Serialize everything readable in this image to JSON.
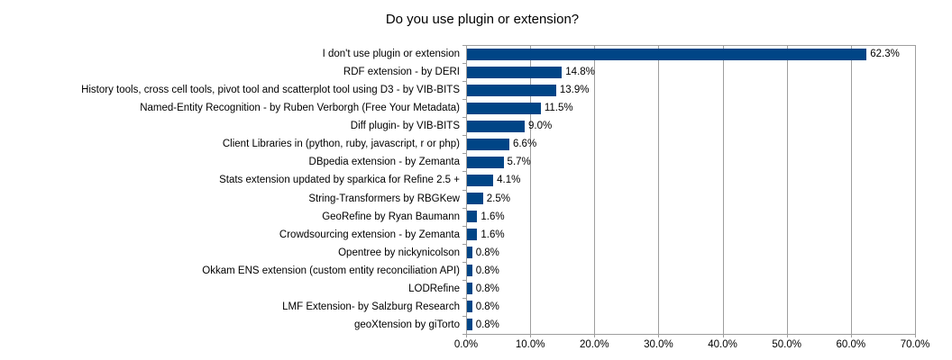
{
  "chart_data": {
    "type": "bar",
    "orientation": "horizontal",
    "title": "Do you use plugin or extension?",
    "xlabel": "",
    "ylabel": "",
    "xlim": [
      0,
      70
    ],
    "grid": true,
    "legend": false,
    "bar_color": "#004586",
    "grid_color": "#9e9e9e",
    "categories": [
      "I don't use plugin or extension",
      "RDF extension - by DERI",
      "History tools, cross cell tools, pivot tool and scatterplot tool using D3 - by VIB-BITS",
      "Named-Entity Recognition - by Ruben Verborgh (Free Your Metadata)",
      "Diff plugin- by VIB-BITS",
      "Client Libraries in (python, ruby, javascript, r or php)",
      "DBpedia extension - by Zemanta",
      "Stats extension updated by sparkica for Refine 2.5 +",
      "String-Transformers by RBGKew",
      "GeoRefine by Ryan Baumann",
      "Crowdsourcing extension - by Zemanta",
      "Opentree by nickynicolson",
      "Okkam ENS extension (custom entity reconciliation API)",
      "LODRefine",
      "LMF Extension- by Salzburg Research",
      "geoXtension by giTorto"
    ],
    "values": [
      62.3,
      14.8,
      13.9,
      11.5,
      9.0,
      6.6,
      5.7,
      4.1,
      2.5,
      1.6,
      1.6,
      0.8,
      0.8,
      0.8,
      0.8,
      0.8
    ],
    "value_labels": [
      "62.3%",
      "14.8%",
      "13.9%",
      "11.5%",
      "9.0%",
      "6.6%",
      "5.7%",
      "4.1%",
      "2.5%",
      "1.6%",
      "1.6%",
      "0.8%",
      "0.8%",
      "0.8%",
      "0.8%",
      "0.8%"
    ],
    "x_tick_labels": [
      "0.0%",
      "10.0%",
      "20.0%",
      "30.0%",
      "40.0%",
      "50.0%",
      "60.0%",
      "70.0%"
    ]
  }
}
